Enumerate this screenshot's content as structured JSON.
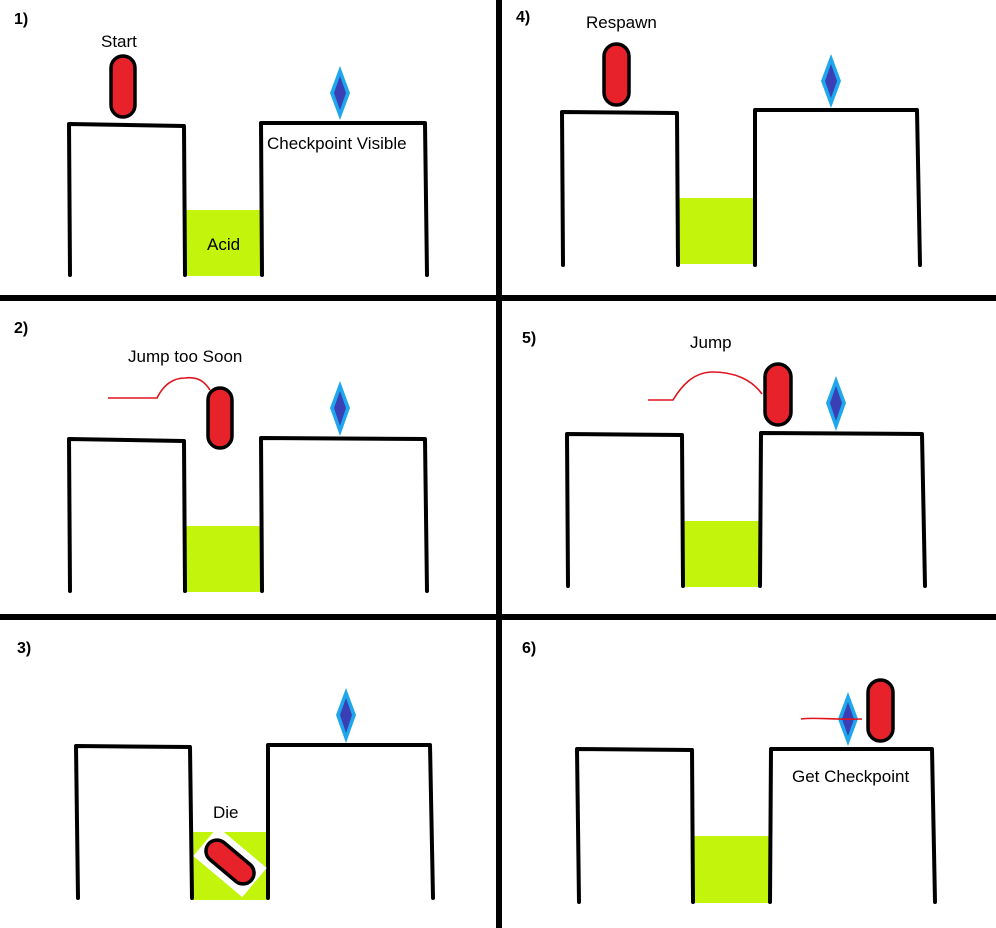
{
  "panels": [
    {
      "number": "1)",
      "caption": "Start",
      "checkpoint_caption": "Checkpoint Visible",
      "acid_caption": "Acid"
    },
    {
      "number": "2)",
      "caption": "Jump too Soon"
    },
    {
      "number": "3)",
      "caption": "Die"
    },
    {
      "number": "4)",
      "caption": "Respawn"
    },
    {
      "number": "5)",
      "caption": "Jump"
    },
    {
      "number": "6)",
      "caption": "Get Checkpoint"
    }
  ],
  "colors": {
    "player": "#e8222b",
    "player_outline": "#000000",
    "acid": "#c3f50c",
    "checkpoint_outer": "#1ea7ec",
    "checkpoint_inner": "#3b3fb5",
    "trail": "#e0141e"
  },
  "icons": {
    "player": "red-capsule",
    "checkpoint": "blue-diamond",
    "hazard": "acid-pool"
  }
}
